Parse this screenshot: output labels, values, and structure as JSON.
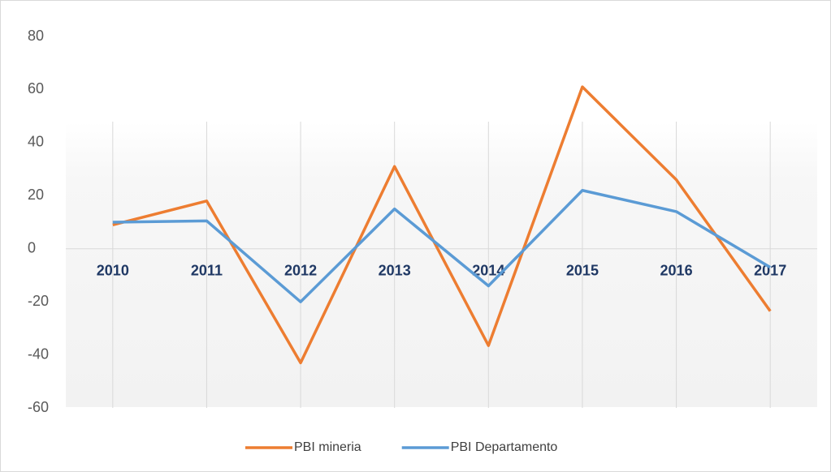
{
  "chart_data": {
    "type": "line",
    "categories": [
      "2010",
      "2011",
      "2012",
      "2013",
      "2014",
      "2015",
      "2016",
      "2017"
    ],
    "series": [
      {
        "name": "PBI mineria",
        "color": "#ed7d31",
        "values": [
          9,
          18,
          -43,
          31,
          -36.5,
          61,
          26,
          -23.5
        ]
      },
      {
        "name": "PBI Departamento",
        "color": "#5b9bd5",
        "values": [
          10,
          10.5,
          -20,
          15,
          -14,
          22,
          14,
          -7
        ]
      }
    ],
    "ylim": [
      -60,
      80
    ],
    "yticks": [
      -60,
      -40,
      -20,
      0,
      20,
      40,
      60,
      80
    ],
    "legend": "bottom"
  }
}
